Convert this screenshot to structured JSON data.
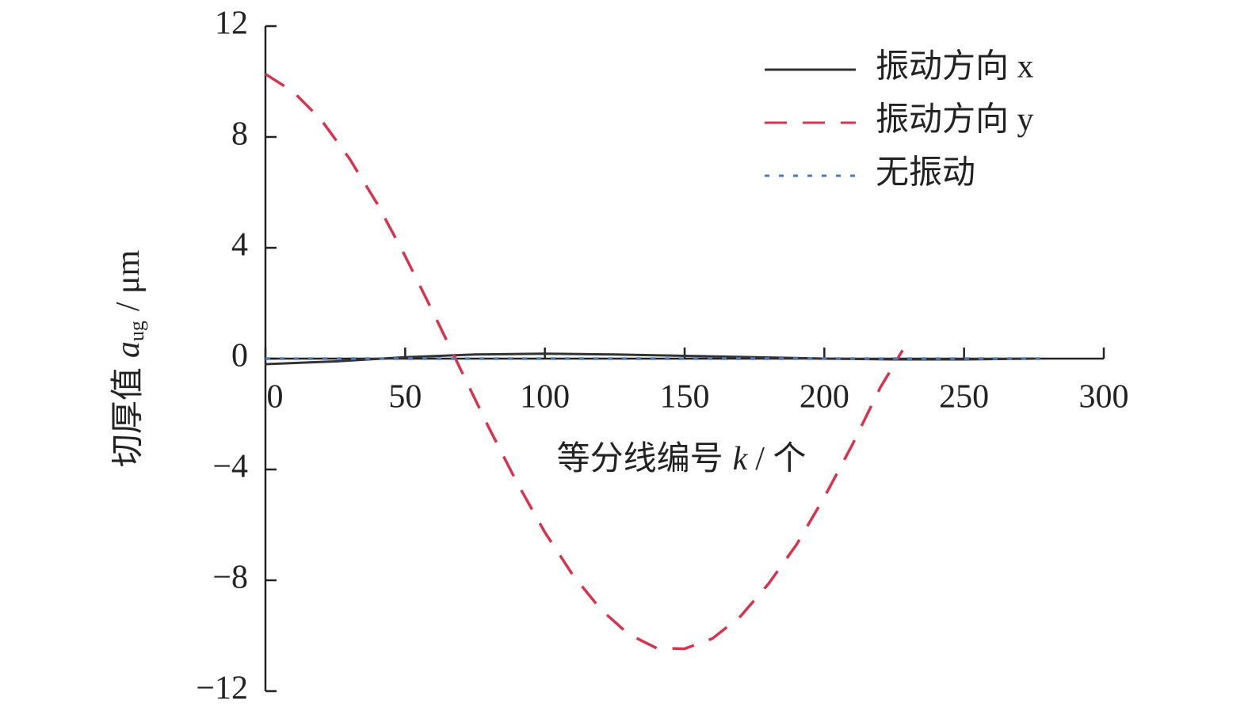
{
  "chart_data": {
    "type": "line",
    "x_label": {
      "text": "等分线编号",
      "symbol": "k",
      "unit": "/ 个"
    },
    "y_label": {
      "text": "切厚值",
      "symbol": "a",
      "subscript": "ug",
      "unit": "/ μm"
    },
    "xlim": [
      0,
      300
    ],
    "xticks": [
      0,
      50,
      100,
      150,
      200,
      250,
      300
    ],
    "ylim": [
      -12,
      12
    ],
    "yticks": [
      {
        "value": -12,
        "label": "−12"
      },
      {
        "value": -8,
        "label": "−8"
      },
      {
        "value": -4,
        "label": "−4"
      },
      0,
      4,
      8,
      12
    ],
    "legend": "upper right",
    "series": [
      {
        "name": "振动方向 x",
        "color": "#333333",
        "dash": "solid",
        "x": [
          0,
          25,
          50,
          75,
          100,
          125,
          150,
          175,
          200,
          225,
          250,
          275
        ],
        "values": [
          -0.2,
          -0.1,
          0.05,
          0.15,
          0.18,
          0.15,
          0.1,
          0.05,
          0,
          -0.03,
          -0.03,
          0
        ]
      },
      {
        "name": "振动方向 y",
        "color": "#d6334f",
        "dash": "dashed",
        "x": [
          0,
          10,
          20,
          30,
          40,
          50,
          60,
          70,
          80,
          90,
          100,
          110,
          120,
          130,
          140,
          150,
          160,
          170,
          180,
          190,
          200,
          210,
          220,
          228
        ],
        "values": [
          10.27,
          9.63,
          8.61,
          7.23,
          5.59,
          3.7,
          1.67,
          -0.42,
          -2.5,
          -4.47,
          -6.27,
          -7.81,
          -9.05,
          -9.95,
          -10.45,
          -10.47,
          -10.1,
          -9.3,
          -8.13,
          -6.72,
          -5.0,
          -3.11,
          -1.05,
          0.3
        ]
      },
      {
        "name": "无振动",
        "color": "#4a7ac2",
        "dash": "dotted",
        "x": [
          0,
          50,
          100,
          150,
          200,
          250,
          280
        ],
        "values": [
          0,
          0,
          0,
          0,
          0,
          0,
          0
        ]
      }
    ]
  }
}
